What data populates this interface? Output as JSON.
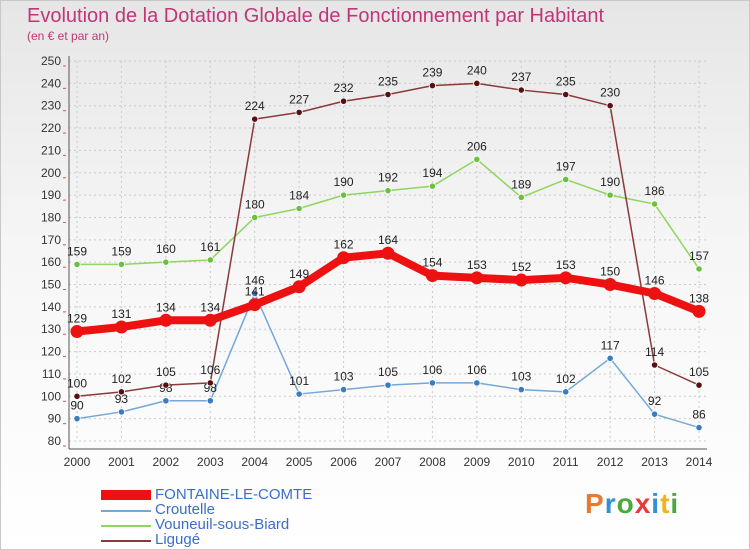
{
  "title": "Evolution de la Dotation Globale de Fonctionnement par Habitant",
  "subtitle": "(en € et par an)",
  "colors": {
    "title": "#c2357a",
    "grid": "#cccccc",
    "axis_text": "#333333",
    "legend_text": "#3b6fc7"
  },
  "logo": {
    "text": "Proxiti",
    "letter_colors": [
      "#e8792f",
      "#2f8fd8",
      "#4aa83c",
      "#e83a3a",
      "#2f8fd8",
      "#f2b21a",
      "#4aa83c"
    ]
  },
  "chart_data": {
    "type": "line",
    "title": "Evolution de la Dotation Globale de Fonctionnement par Habitant",
    "subtitle": "(en € et par an)",
    "xlabel": "",
    "ylabel": "",
    "ylim": [
      80,
      250
    ],
    "yticks": [
      80,
      90,
      100,
      110,
      120,
      130,
      140,
      150,
      160,
      170,
      180,
      190,
      200,
      210,
      220,
      230,
      240,
      250
    ],
    "categories": [
      "2000",
      "2001",
      "2002",
      "2003",
      "2004",
      "2005",
      "2006",
      "2007",
      "2008",
      "2009",
      "2010",
      "2011",
      "2012",
      "2013",
      "2014"
    ],
    "grid": true,
    "legend_position": "bottom-left",
    "series": [
      {
        "name": "FONTAINE-LE-COMTE",
        "color": "#ee1111",
        "marker_color": "#ee1111",
        "emphasis": "thick",
        "values": [
          129,
          131,
          134,
          134,
          141,
          149,
          162,
          164,
          154,
          153,
          152,
          153,
          150,
          146,
          138
        ],
        "labels": [
          "129",
          "131",
          "134",
          "134",
          "141",
          "149",
          "162",
          "164",
          "154",
          "153",
          "152",
          "153",
          "150",
          "146",
          "138"
        ]
      },
      {
        "name": "Croutelle",
        "color": "#74a8d6",
        "marker_color": "#3a7cc2",
        "emphasis": "normal",
        "values": [
          90,
          93,
          98,
          98,
          146,
          101,
          103,
          105,
          106,
          106,
          103,
          102,
          117,
          92,
          86
        ],
        "labels": [
          "90",
          "93",
          "98",
          "98",
          "146",
          "101",
          "103",
          "105",
          "106",
          "106",
          "103",
          "102",
          "117",
          "92",
          "86"
        ]
      },
      {
        "name": "Vouneuil-sous-Biard",
        "color": "#8ed65e",
        "marker_color": "#6cc040",
        "emphasis": "normal",
        "values": [
          159,
          159,
          160,
          161,
          180,
          184,
          190,
          192,
          194,
          206,
          189,
          197,
          190,
          186,
          157
        ],
        "labels": [
          "159",
          "159",
          "160",
          "161",
          "180",
          "184",
          "190",
          "192",
          "194",
          "206",
          "189",
          "197",
          "190",
          "186",
          "157"
        ]
      },
      {
        "name": "Ligugé",
        "color": "#8a3a3a",
        "marker_color": "#5a1010",
        "emphasis": "normal",
        "values": [
          100,
          102,
          105,
          106,
          224,
          227,
          232,
          235,
          239,
          240,
          237,
          235,
          230,
          114,
          105
        ],
        "labels": [
          "100",
          "102",
          "105",
          "106",
          "224",
          "227",
          "232",
          "235",
          "239",
          "240",
          "237",
          "235",
          "230",
          "114",
          "105"
        ]
      }
    ]
  }
}
